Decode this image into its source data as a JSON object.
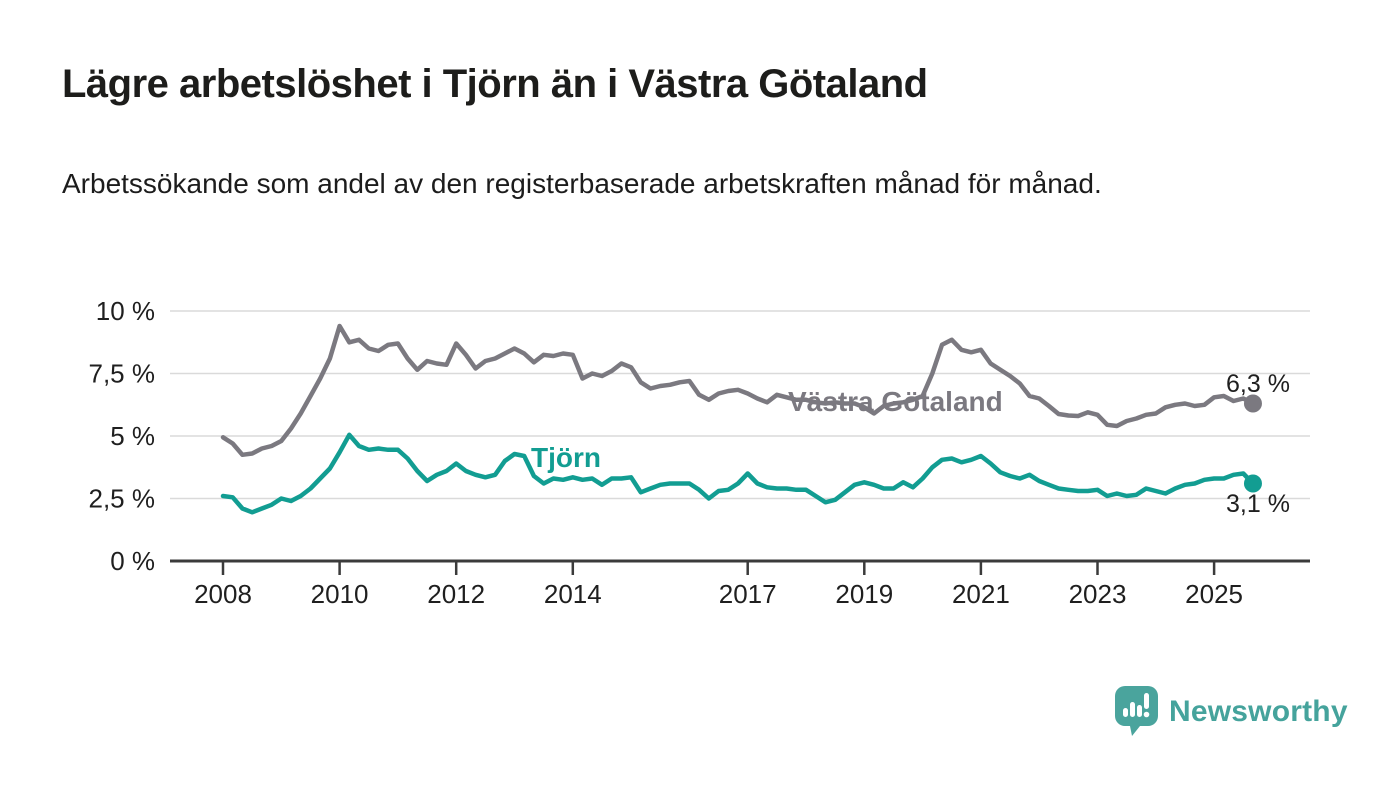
{
  "chart_data": {
    "type": "line",
    "title": "Lägre arbetslöshet i Tjörn än i Västra Götaland",
    "subtitle": "Arbetssökande som andel av den registerbaserade arbetskraften månad för månad.",
    "unit": "%",
    "x_start_year": 2008,
    "x_step_years": 0.1666667,
    "x_end_year": 2025.67,
    "xlim": [
      2007.1,
      2026.0
    ],
    "ylim": [
      0,
      10
    ],
    "grid": "horizontal",
    "legend": "inline-labels",
    "y_ticks": [
      0,
      2.5,
      5,
      7.5,
      10
    ],
    "y_tick_labels": [
      "0 %",
      "2,5 %",
      "5 %",
      "7,5 %",
      "10 %"
    ],
    "x_ticks": [
      2008,
      2010,
      2012,
      2014,
      2017,
      2019,
      2021,
      2023,
      2025
    ],
    "x_tick_labels": [
      "2008",
      "2010",
      "2012",
      "2014",
      "2017",
      "2019",
      "2021",
      "2023",
      "2025"
    ],
    "series": [
      {
        "name": "Västra Götaland",
        "color": "#7b7980",
        "end_label": "6,3 %",
        "end_value": 6.3,
        "values": [
          4.95,
          4.7,
          4.25,
          4.3,
          4.5,
          4.6,
          4.8,
          5.3,
          5.9,
          6.6,
          7.3,
          8.1,
          9.4,
          8.75,
          8.85,
          8.5,
          8.4,
          8.65,
          8.7,
          8.1,
          7.65,
          8.0,
          7.9,
          7.85,
          8.7,
          8.25,
          7.7,
          8.0,
          8.1,
          8.3,
          8.5,
          8.3,
          7.95,
          8.25,
          8.2,
          8.3,
          8.25,
          7.3,
          7.5,
          7.4,
          7.6,
          7.9,
          7.75,
          7.15,
          6.9,
          7.0,
          7.05,
          7.15,
          7.2,
          6.65,
          6.45,
          6.7,
          6.8,
          6.85,
          6.7,
          6.5,
          6.35,
          6.65,
          6.55,
          6.45,
          6.45,
          6.35,
          6.3,
          6.35,
          6.3,
          6.3,
          6.15,
          5.9,
          6.2,
          6.3,
          6.35,
          6.45,
          6.6,
          7.5,
          8.65,
          8.85,
          8.45,
          8.35,
          8.45,
          7.9,
          7.65,
          7.4,
          7.1,
          6.6,
          6.5,
          6.2,
          5.88,
          5.82,
          5.8,
          5.95,
          5.85,
          5.45,
          5.4,
          5.6,
          5.7,
          5.85,
          5.9,
          6.15,
          6.25,
          6.3,
          6.2,
          6.25,
          6.55,
          6.6,
          6.4,
          6.5,
          6.3
        ]
      },
      {
        "name": "Tjörn",
        "color": "#129d92",
        "end_label": "3,1 %",
        "end_value": 3.1,
        "values": [
          2.6,
          2.55,
          2.1,
          1.95,
          2.1,
          2.25,
          2.5,
          2.4,
          2.6,
          2.9,
          3.3,
          3.7,
          4.35,
          5.05,
          4.6,
          4.45,
          4.5,
          4.45,
          4.45,
          4.1,
          3.6,
          3.2,
          3.45,
          3.6,
          3.9,
          3.6,
          3.45,
          3.35,
          3.45,
          4.0,
          4.28,
          4.2,
          3.4,
          3.1,
          3.3,
          3.25,
          3.35,
          3.25,
          3.3,
          3.05,
          3.3,
          3.3,
          3.35,
          2.75,
          2.9,
          3.05,
          3.1,
          3.1,
          3.1,
          2.85,
          2.5,
          2.8,
          2.85,
          3.1,
          3.5,
          3.1,
          2.95,
          2.9,
          2.9,
          2.85,
          2.85,
          2.6,
          2.35,
          2.45,
          2.75,
          3.05,
          3.15,
          3.05,
          2.9,
          2.9,
          3.15,
          2.95,
          3.3,
          3.75,
          4.05,
          4.1,
          3.95,
          4.05,
          4.2,
          3.9,
          3.55,
          3.4,
          3.3,
          3.45,
          3.2,
          3.05,
          2.9,
          2.85,
          2.8,
          2.8,
          2.85,
          2.6,
          2.7,
          2.6,
          2.65,
          2.9,
          2.8,
          2.7,
          2.9,
          3.05,
          3.1,
          3.25,
          3.3,
          3.3,
          3.45,
          3.5,
          3.1
        ]
      }
    ]
  },
  "colors": {
    "axis": "#3b3b3b",
    "gridline": "#dadada",
    "text": "#1f1f1f"
  },
  "footer": {
    "brand": "Newsworthy",
    "brand_color": "#45a39c"
  }
}
